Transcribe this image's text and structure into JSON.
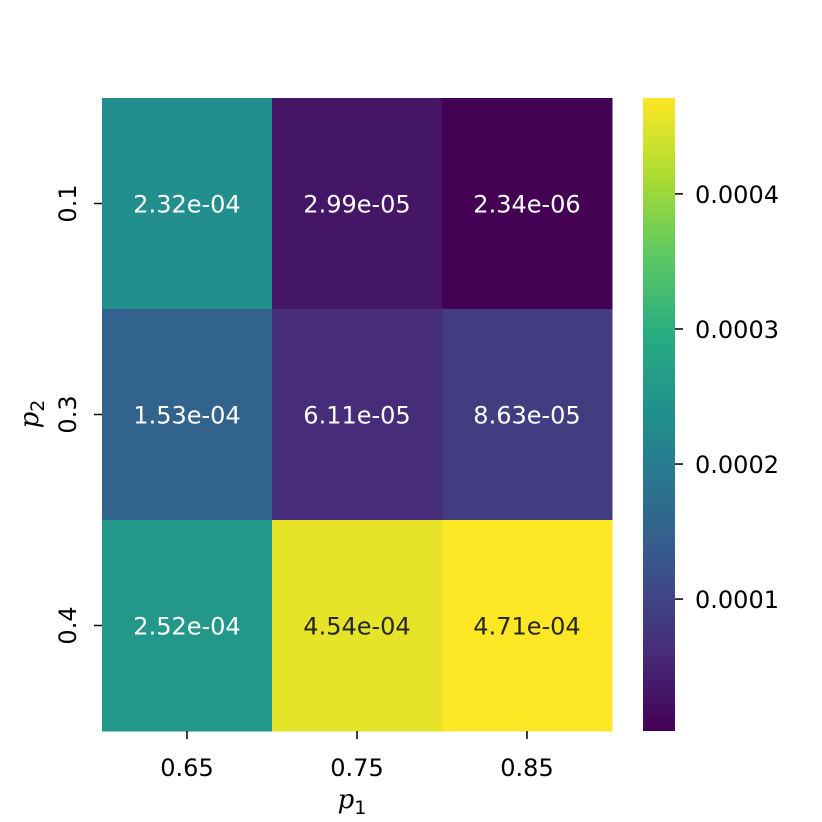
{
  "chart_data": {
    "type": "heatmap",
    "x_categories": [
      "0.65",
      "0.75",
      "0.85"
    ],
    "y_categories": [
      "0.1",
      "0.3",
      "0.4"
    ],
    "xlabel": "p",
    "xlabel_sub": "1",
    "ylabel": "p",
    "ylabel_sub": "2",
    "values": [
      [
        0.000232,
        2.99e-05,
        2.34e-06
      ],
      [
        0.000153,
        6.11e-05,
        8.63e-05
      ],
      [
        0.000252,
        0.000454,
        0.000471
      ]
    ],
    "cell_labels": [
      [
        "2.32e-04",
        "2.99e-05",
        "2.34e-06"
      ],
      [
        "1.53e-04",
        "6.11e-05",
        "8.63e-05"
      ],
      [
        "2.52e-04",
        "4.54e-04",
        "4.71e-04"
      ]
    ],
    "colormap": "viridis",
    "colorbar": {
      "range": [
        2.34e-06,
        0.000471
      ],
      "ticks": [
        0.0001,
        0.0002,
        0.0003,
        0.0004
      ],
      "tick_labels": [
        "0.0001",
        "0.0002",
        "0.0003",
        "0.0004"
      ]
    },
    "grid": false,
    "legend": "colorbar-right"
  }
}
